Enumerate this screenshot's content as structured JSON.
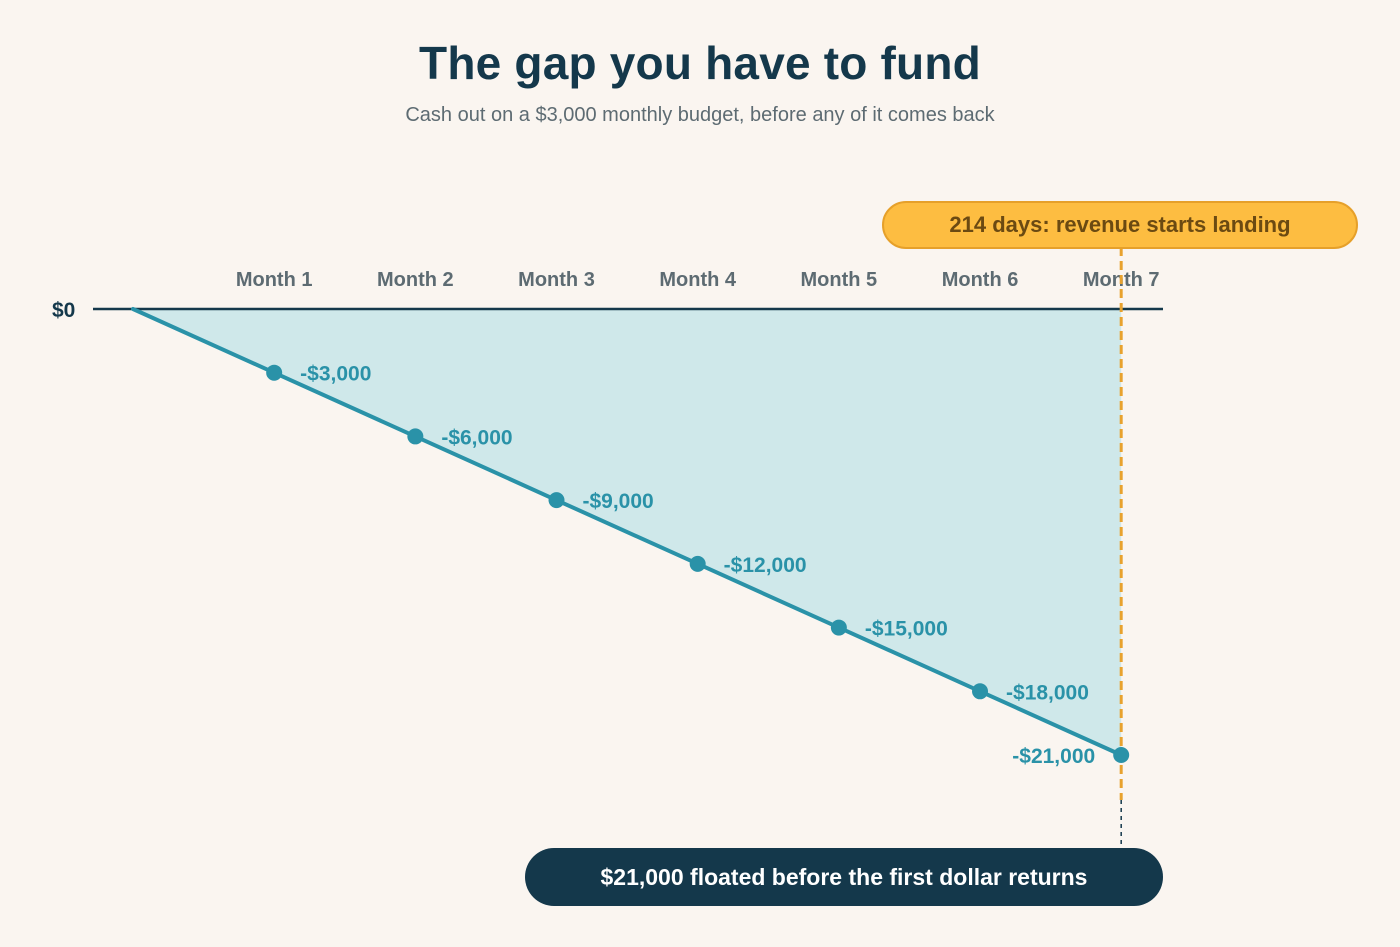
{
  "chart_data": {
    "type": "line",
    "title": "The gap you have to fund",
    "subtitle": "Cash out on a $3,000 monthly budget, before any of it comes back",
    "categories": [
      "Month 1",
      "Month 2",
      "Month 3",
      "Month 4",
      "Month 5",
      "Month 6",
      "Month 7"
    ],
    "series": [
      {
        "values": [
          -3000,
          -6000,
          -9000,
          -12000,
          -15000,
          -18000,
          -21000
        ],
        "labels": [
          "-$3,000",
          "-$6,000",
          "-$9,000",
          "-$12,000",
          "-$15,000",
          "-$18,000",
          "-$21,000"
        ]
      }
    ],
    "start_value": 0,
    "baseline_label": "$0",
    "ylim": [
      -21000,
      0
    ],
    "grid": false,
    "area_fill": true,
    "annotations": {
      "marker_month": 7,
      "marker_label": "214 days: revenue starts landing",
      "callout_label": "$21,000 floated before the first dollar returns"
    },
    "colors": {
      "line": "#2a92a8",
      "area": "#cfe8ea",
      "baseline": "#14384b",
      "marker": "#e8a22e",
      "marker_pill": "#fdbd41",
      "callout_pill": "#14384b",
      "background": "#faf5f0"
    }
  }
}
